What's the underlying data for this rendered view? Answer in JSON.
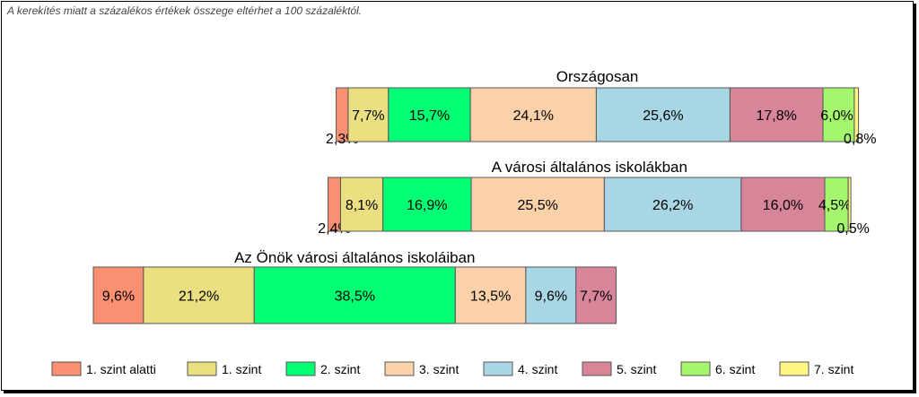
{
  "note": "A kerekítés miatt a  százalékos értékek összege eltérhet a 100 százaléktól.",
  "colors": [
    "#fa9071",
    "#ebe081",
    "#00ff72",
    "#fad1a8",
    "#a8d6e5",
    "#d88599",
    "#a4f76d",
    "#fff582"
  ],
  "chart_data": {
    "type": "bar",
    "stacked": true,
    "orientation": "horizontal",
    "categories": [
      "1. szint alatti",
      "1. szint",
      "2. szint",
      "3. szint",
      "4. szint",
      "5. szint",
      "6. szint",
      "7. szint"
    ],
    "legend_position": "bottom",
    "bars": [
      {
        "title": "Országosan",
        "values": [
          2.3,
          7.7,
          15.7,
          24.1,
          25.6,
          17.8,
          6.0,
          0.8
        ],
        "labels": [
          "2,3%",
          "7,7%",
          "15,7%",
          "24,1%",
          "25,6%",
          "17,8%",
          "6,0%",
          "0,8%"
        ]
      },
      {
        "title": "A városi általános iskolákban",
        "values": [
          2.4,
          8.1,
          16.9,
          25.5,
          26.2,
          16.0,
          4.5,
          0.5
        ],
        "labels": [
          "2,4%",
          "8,1%",
          "16,9%",
          "25,5%",
          "26,2%",
          "16,0%",
          "4,5%",
          "0,5%"
        ]
      },
      {
        "title": "Az Önök városi általános iskoláiban",
        "values": [
          9.6,
          21.2,
          38.5,
          13.5,
          9.6,
          7.7,
          0,
          0
        ],
        "labels": [
          "9,6%",
          "21,2%",
          "38,5%",
          "13,5%",
          "9,6%",
          "7,7%",
          "",
          ""
        ]
      }
    ]
  }
}
